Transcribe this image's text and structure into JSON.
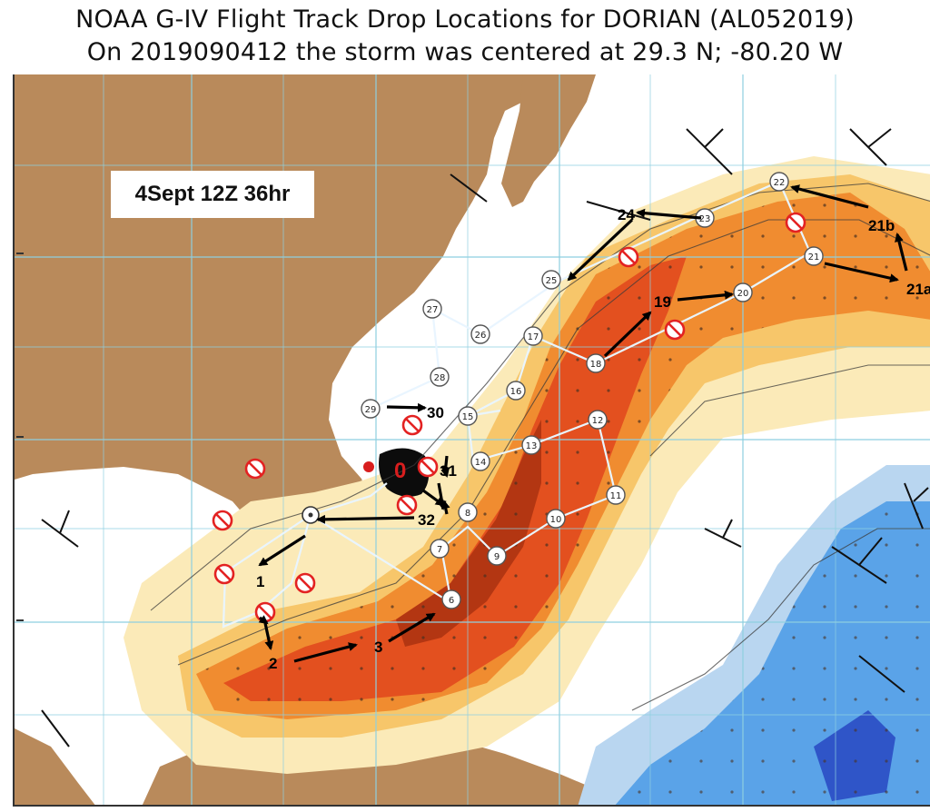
{
  "title": {
    "line1": "NOAA G-IV Flight Track Drop Locations for DORIAN (AL052019)",
    "line2": "On 2019090412 the storm was centered at 29.3 N; -80.20 W"
  },
  "forecast_label": "4Sept 12Z 36hr",
  "storm_marker_label": "0",
  "waypoints": [
    "27",
    "26",
    "25",
    "24",
    "23",
    "22",
    "21",
    "20",
    "19",
    "18",
    "17",
    "16",
    "15",
    "14",
    "13",
    "12",
    "11",
    "10",
    "9",
    "8",
    "7",
    "6",
    "28",
    "29"
  ],
  "annotations": [
    "1",
    "2",
    "3",
    "19",
    "21a",
    "21b",
    "24",
    "30",
    "31",
    "32"
  ],
  "cancelled_drop_icon": "no-entry-icon",
  "colors": {
    "land": "#b98a5b",
    "sea": "#ffffff",
    "shade_light": "#fbeab8",
    "shade_mid": "#f7c66a",
    "shade_orange": "#f08c30",
    "shade_red": "#e3501f",
    "shade_dark": "#b33612",
    "cold_light": "#b9d6f0",
    "cold_mid": "#5aa3e8",
    "cold_deep": "#2f55c8",
    "grid": "#8ecfe0",
    "track": "#e9f5ff",
    "arrow": "#000000",
    "cancel": "#e32222",
    "storm_dot": "#d81e1e"
  }
}
